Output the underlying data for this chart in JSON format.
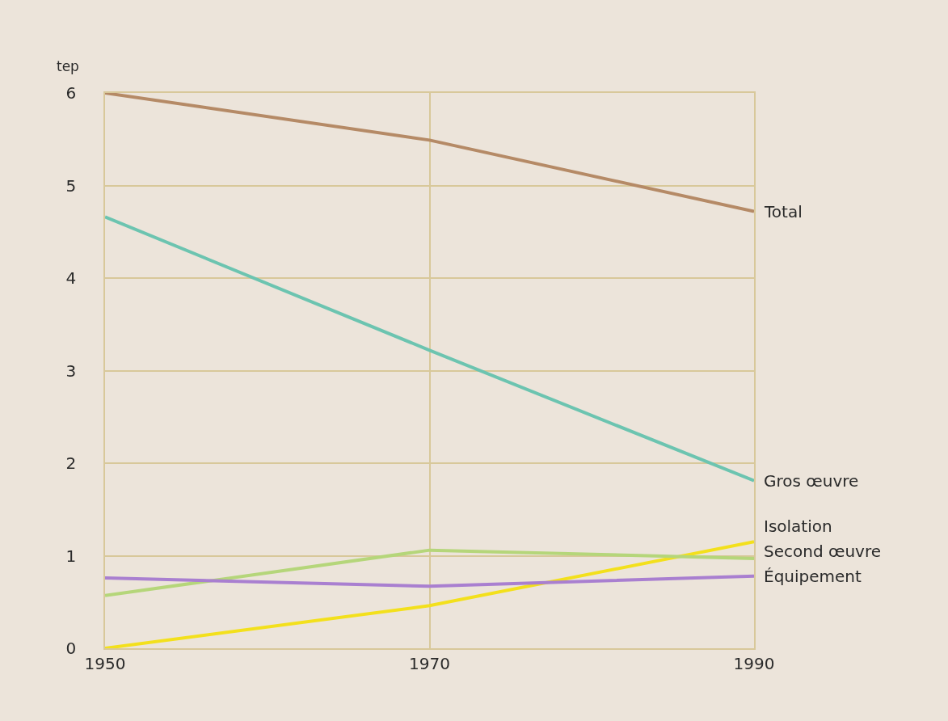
{
  "chart_data": {
    "type": "line",
    "ylabel": "tep",
    "x": [
      1950,
      1970,
      1990
    ],
    "series": [
      {
        "name": "Total",
        "color": "#b58a66",
        "values": [
          6.0,
          5.49,
          4.72
        ]
      },
      {
        "name": "Gros œuvre",
        "color": "#6cc4b0",
        "values": [
          4.66,
          3.22,
          1.81
        ]
      },
      {
        "name": "Isolation",
        "color": "#f3e01c",
        "values": [
          0.0,
          0.46,
          1.15
        ]
      },
      {
        "name": "Second œuvre",
        "color": "#b5d67a",
        "values": [
          0.57,
          1.06,
          0.97
        ]
      },
      {
        "name": "Équipement",
        "color": "#a97fd0",
        "values": [
          0.76,
          0.67,
          0.78
        ]
      }
    ],
    "xlim": [
      1950,
      1990
    ],
    "xticks": [
      1950,
      1970,
      1990
    ],
    "ylim": [
      0,
      6
    ],
    "yticks": [
      0,
      1,
      2,
      3,
      4,
      5,
      6
    ],
    "grid": true,
    "legend": false,
    "marker": "none",
    "line_style": "solid"
  }
}
